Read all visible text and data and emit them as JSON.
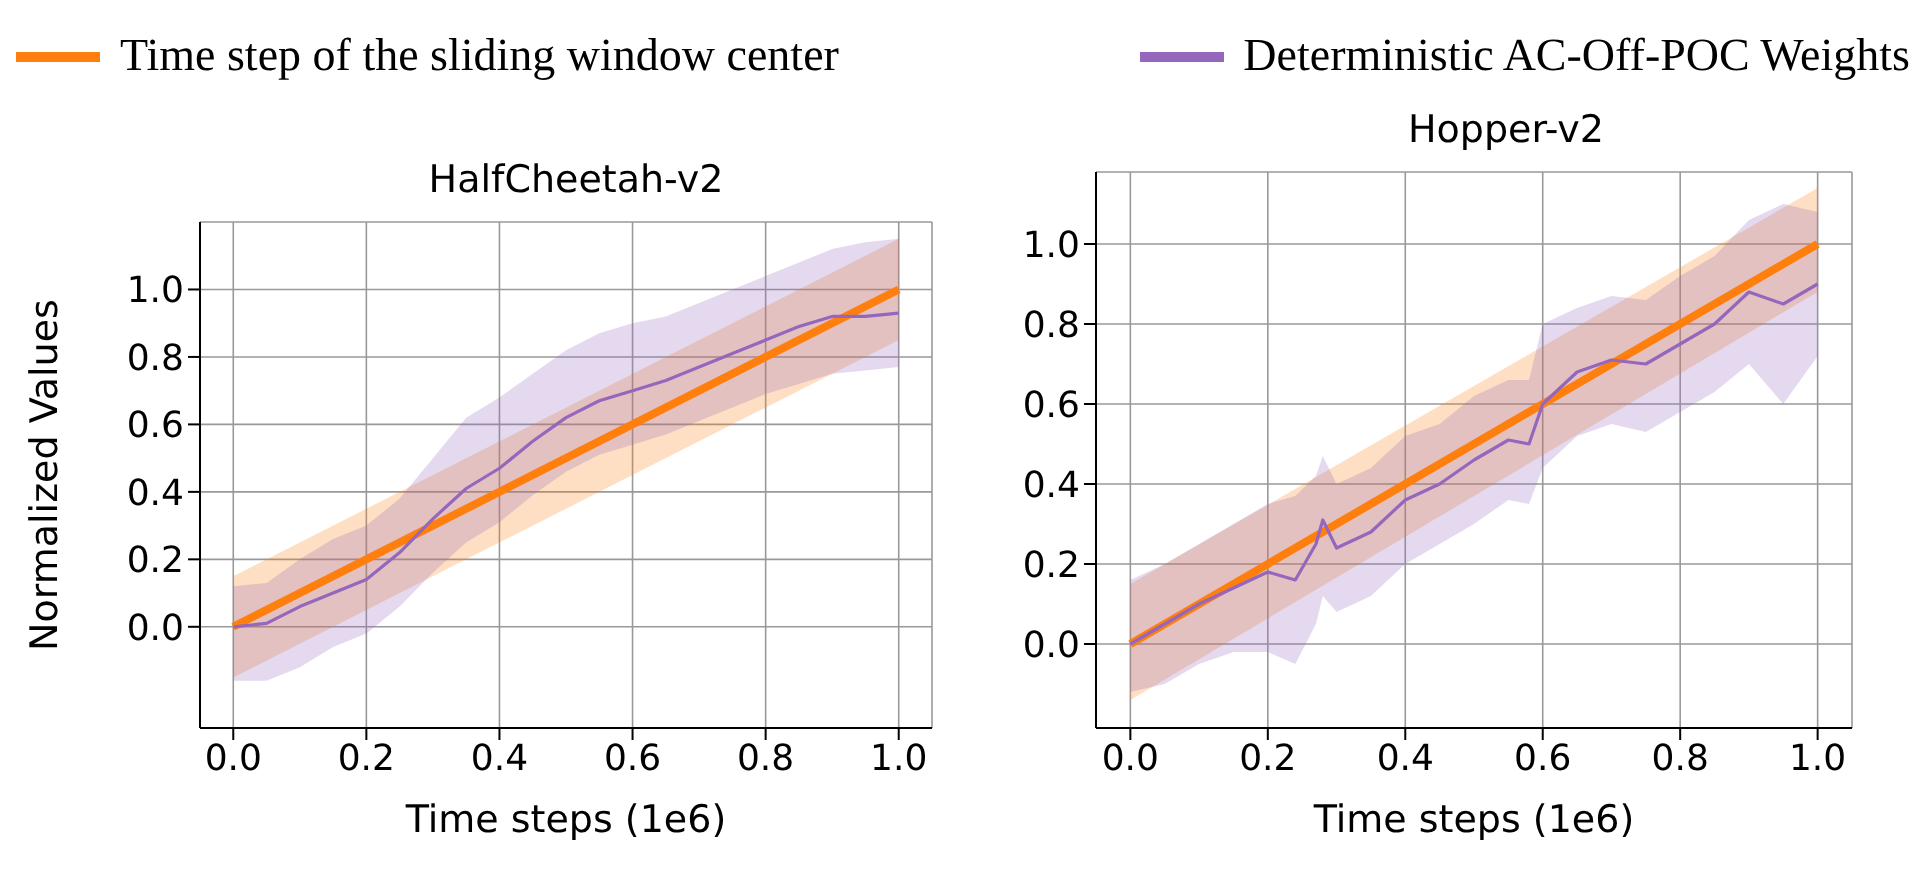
{
  "chart_data": [
    {
      "type": "line",
      "title": "HalfCheetah-v2",
      "xlabel": "Time steps (1e6)",
      "ylabel": "Normalized Values",
      "legend": "top",
      "grid": true,
      "line_style": "solid",
      "marker": "none",
      "xlim": [
        -0.05,
        1.05
      ],
      "ylim": [
        -0.3,
        1.2
      ],
      "xticks": [
        {
          "value": 0,
          "label": "0.0"
        },
        {
          "value": 0.2,
          "label": "0.2"
        },
        {
          "value": 0.4,
          "label": "0.4"
        },
        {
          "value": 0.6,
          "label": "0.6"
        },
        {
          "value": 0.8,
          "label": "0.8"
        },
        {
          "value": 1,
          "label": "1.0"
        }
      ],
      "yticks": [
        {
          "value": 0,
          "label": "0.0"
        },
        {
          "value": 0.2,
          "label": "0.2"
        },
        {
          "value": 0.4,
          "label": "0.4"
        },
        {
          "value": 0.6,
          "label": "0.6"
        },
        {
          "value": 0.8,
          "label": "0.8"
        },
        {
          "value": 1,
          "label": "1.0"
        }
      ],
      "series": [
        {
          "name": "Time step of the sliding window center",
          "color": "#ff7f0e",
          "x": [
            0,
            1
          ],
          "values": [
            0,
            1
          ],
          "lower": [
            -0.15,
            0.85
          ],
          "upper": [
            0.15,
            1.15
          ]
        },
        {
          "name": "Deterministic AC-Off-POC Weights",
          "color": "#9467bd",
          "x": [
            0,
            0.05,
            0.1,
            0.15,
            0.2,
            0.25,
            0.3,
            0.35,
            0.4,
            0.45,
            0.5,
            0.55,
            0.6,
            0.65,
            0.7,
            0.75,
            0.8,
            0.85,
            0.9,
            0.95,
            1
          ],
          "values": [
            0,
            0.01,
            0.06,
            0.1,
            0.14,
            0.22,
            0.32,
            0.41,
            0.47,
            0.55,
            0.62,
            0.67,
            0.7,
            0.73,
            0.77,
            0.81,
            0.85,
            0.89,
            0.92,
            0.92,
            0.93
          ],
          "lower": [
            -0.16,
            -0.16,
            -0.12,
            -0.06,
            -0.02,
            0.06,
            0.16,
            0.25,
            0.31,
            0.39,
            0.46,
            0.51,
            0.54,
            0.57,
            0.61,
            0.65,
            0.69,
            0.72,
            0.75,
            0.76,
            0.77
          ],
          "upper": [
            0.12,
            0.13,
            0.2,
            0.26,
            0.3,
            0.38,
            0.5,
            0.62,
            0.68,
            0.75,
            0.82,
            0.87,
            0.9,
            0.92,
            0.96,
            1.0,
            1.04,
            1.08,
            1.12,
            1.14,
            1.15
          ]
        }
      ]
    },
    {
      "type": "line",
      "title": "Hopper-v2",
      "xlabel": "Time steps (1e6)",
      "grid": true,
      "line_style": "solid",
      "marker": "none",
      "xlim": [
        -0.05,
        1.05
      ],
      "ylim": [
        -0.21,
        1.18
      ],
      "xticks": [
        {
          "value": 0,
          "label": "0.0"
        },
        {
          "value": 0.2,
          "label": "0.2"
        },
        {
          "value": 0.4,
          "label": "0.4"
        },
        {
          "value": 0.6,
          "label": "0.6"
        },
        {
          "value": 0.8,
          "label": "0.8"
        },
        {
          "value": 1,
          "label": "1.0"
        }
      ],
      "yticks": [
        {
          "value": 0,
          "label": "0.0"
        },
        {
          "value": 0.2,
          "label": "0.2"
        },
        {
          "value": 0.4,
          "label": "0.4"
        },
        {
          "value": 0.6,
          "label": "0.6"
        },
        {
          "value": 0.8,
          "label": "0.8"
        },
        {
          "value": 1,
          "label": "1.0"
        }
      ],
      "series": [
        {
          "color": "#ff7f0e",
          "x": [
            0,
            1
          ],
          "values": [
            0,
            1
          ],
          "lower": [
            -0.14,
            0.88
          ],
          "upper": [
            0.15,
            1.14
          ]
        },
        {
          "color": "#9467bd",
          "x": [
            0,
            0.05,
            0.1,
            0.15,
            0.2,
            0.24,
            0.27,
            0.28,
            0.3,
            0.35,
            0.4,
            0.45,
            0.5,
            0.55,
            0.58,
            0.6,
            0.65,
            0.7,
            0.75,
            0.8,
            0.85,
            0.9,
            0.95,
            1
          ],
          "values": [
            0,
            0.05,
            0.1,
            0.14,
            0.18,
            0.16,
            0.25,
            0.31,
            0.24,
            0.28,
            0.36,
            0.4,
            0.46,
            0.51,
            0.5,
            0.6,
            0.68,
            0.71,
            0.7,
            0.75,
            0.8,
            0.88,
            0.85,
            0.9
          ],
          "lower": [
            -0.12,
            -0.1,
            -0.05,
            -0.02,
            -0.02,
            -0.05,
            0.05,
            0.12,
            0.08,
            0.12,
            0.2,
            0.25,
            0.3,
            0.36,
            0.35,
            0.44,
            0.52,
            0.55,
            0.53,
            0.58,
            0.63,
            0.7,
            0.6,
            0.72
          ],
          "upper": [
            0.16,
            0.2,
            0.25,
            0.3,
            0.35,
            0.37,
            0.42,
            0.47,
            0.4,
            0.44,
            0.52,
            0.55,
            0.62,
            0.66,
            0.66,
            0.8,
            0.84,
            0.87,
            0.86,
            0.92,
            0.97,
            1.06,
            1.1,
            1.08
          ]
        }
      ]
    }
  ]
}
